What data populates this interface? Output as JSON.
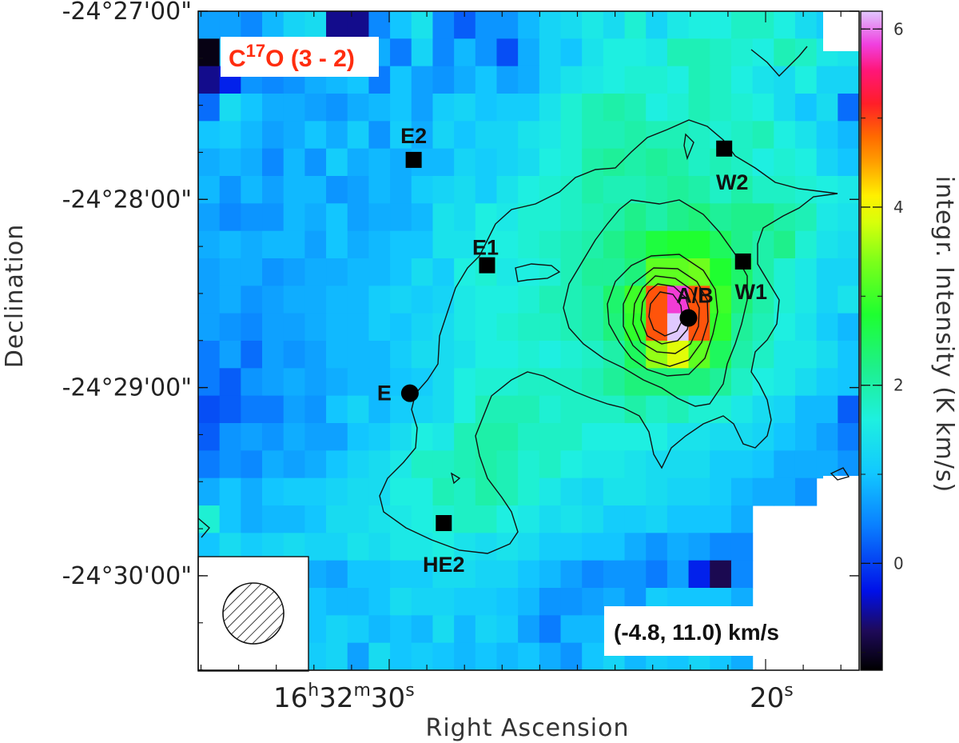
{
  "chart_data": {
    "type": "heatmap",
    "title_parts": [
      "C",
      "17",
      "O (3 - 2)"
    ],
    "velocity_range": "(-4.8, 11.0) km/s",
    "xlabel": "Right Ascension",
    "ylabel": "Declination",
    "colorbar_label": "integr. Intensity (K km/s)",
    "colorbar_range": [
      -1.2,
      6.2
    ],
    "colorbar_ticks": [
      "0",
      "2",
      "4",
      "6"
    ],
    "colorbar_tick_values": [
      0,
      2,
      4,
      6
    ],
    "y_tick_labels": [
      "-24°27'00\"",
      "-24°28'00\"",
      "-24°29'00\"",
      "-24°30'00\""
    ],
    "y_tick_values": [
      0,
      1,
      2,
      3
    ],
    "x_tick_labels": [
      {
        "main": "16",
        "sup1": "h",
        "mid": "32",
        "sup2": "m",
        "tail": "30",
        "sup3": "s"
      },
      {
        "main": "20",
        "sup1": "",
        "mid": "",
        "sup2": "",
        "tail": "",
        "sup3": "s"
      }
    ],
    "x_tick_values_sec": [
      30,
      20
    ],
    "grid": false,
    "contours": true,
    "sources": [
      {
        "name": "E2",
        "marker": "square",
        "ra_s": 29.35,
        "dec_arcmin": 0.79
      },
      {
        "name": "W2",
        "marker": "square",
        "ra_s": 21.1,
        "dec_arcmin": 0.73
      },
      {
        "name": "E1",
        "marker": "square",
        "ra_s": 27.4,
        "dec_arcmin": 1.35
      },
      {
        "name": "W1",
        "marker": "square",
        "ra_s": 20.6,
        "dec_arcmin": 1.33
      },
      {
        "name": "A/B",
        "marker": "circle",
        "ra_s": 22.05,
        "dec_arcmin": 1.63
      },
      {
        "name": "E",
        "marker": "circle",
        "ra_s": 29.45,
        "dec_arcmin": 2.03
      },
      {
        "name": "HE2",
        "marker": "square",
        "ra_s": 28.55,
        "dec_arcmin": 2.72
      }
    ],
    "beam": "hatched-circle",
    "intensity_grid": [
      [
        0.7,
        0.7,
        0.5,
        0.9,
        1.2,
        1.3,
        -0.6,
        -0.6,
        0.5,
        1.0,
        1.4,
        0.5,
        0.2,
        0.6,
        0.6,
        0.9,
        1.2,
        1.3,
        1.5,
        1.3,
        1.7,
        1.2,
        1.5,
        1.6,
        1.6,
        1.8,
        1.8,
        1.6,
        1.3,
        1.1,
        1.1
      ],
      [
        -1.1,
        0.9,
        0.4,
        0.7,
        1.2,
        0.9,
        1.0,
        0.3,
        0.8,
        0.4,
        1.2,
        0.5,
        0.9,
        0.6,
        0.1,
        0.8,
        1.2,
        1.0,
        1.4,
        1.6,
        1.6,
        1.5,
        1.9,
        1.9,
        1.8,
        1.7,
        1.6,
        1.9,
        1.8,
        1.5,
        1.4
      ],
      [
        -0.6,
        -0.2,
        0.6,
        0.5,
        0.6,
        0.8,
        0.9,
        1.0,
        0.4,
        1.0,
        0.7,
        0.6,
        0.8,
        1.0,
        0.7,
        0.8,
        1.2,
        1.4,
        1.5,
        1.6,
        1.7,
        1.7,
        1.6,
        1.9,
        1.8,
        1.6,
        1.4,
        1.3,
        1.6,
        1.2,
        1.2
      ],
      [
        0.3,
        1.3,
        1.0,
        0.8,
        0.8,
        0.7,
        0.6,
        0.8,
        0.9,
        1.0,
        0.7,
        1.1,
        1.2,
        1.0,
        1.1,
        1.1,
        1.4,
        1.7,
        1.9,
        2.0,
        1.9,
        1.6,
        1.7,
        1.9,
        1.8,
        1.7,
        1.6,
        1.3,
        1.0,
        1.3,
        0.3
      ],
      [
        1.0,
        1.1,
        0.9,
        0.7,
        0.8,
        1.0,
        0.8,
        1.1,
        0.6,
        1.1,
        0.8,
        1.2,
        1.0,
        1.2,
        1.2,
        1.4,
        1.5,
        1.7,
        1.9,
        1.9,
        2.0,
        1.9,
        1.9,
        1.8,
        1.7,
        1.8,
        1.9,
        1.6,
        1.4,
        1.1,
        0.9
      ],
      [
        0.8,
        0.9,
        0.8,
        0.5,
        0.9,
        0.6,
        1.1,
        0.8,
        0.9,
        0.8,
        0.9,
        0.9,
        1.2,
        1.1,
        1.2,
        1.3,
        1.6,
        1.7,
        2.0,
        2.1,
        2.0,
        2.1,
        2.0,
        1.8,
        1.9,
        1.8,
        1.6,
        1.7,
        1.6,
        1.2,
        1.0
      ],
      [
        0.9,
        0.6,
        0.9,
        0.7,
        0.9,
        0.9,
        0.6,
        0.7,
        0.9,
        0.8,
        1.1,
        1.2,
        1.3,
        1.1,
        1.4,
        1.6,
        1.7,
        1.8,
        2.0,
        1.9,
        1.9,
        2.0,
        2.1,
        2.0,
        1.8,
        2.0,
        1.8,
        1.8,
        1.7,
        1.6,
        1.5
      ],
      [
        0.7,
        0.5,
        0.6,
        0.6,
        0.9,
        0.8,
        1.0,
        0.7,
        0.8,
        0.8,
        0.9,
        1.4,
        1.3,
        1.6,
        1.5,
        1.7,
        1.7,
        1.8,
        1.9,
        2.0,
        2.2,
        2.0,
        2.2,
        2.3,
        2.1,
        2.2,
        2.2,
        2.0,
        1.9,
        1.5,
        1.4
      ],
      [
        0.8,
        0.9,
        0.8,
        0.9,
        0.9,
        0.7,
        1.0,
        0.8,
        0.9,
        1.0,
        1.0,
        1.4,
        1.4,
        1.6,
        1.6,
        1.7,
        1.8,
        1.9,
        2.0,
        2.2,
        2.4,
        2.7,
        2.8,
        2.8,
        2.5,
        2.2,
        2.0,
        2.2,
        1.7,
        1.4,
        1.3
      ],
      [
        0.7,
        0.8,
        0.8,
        0.6,
        0.7,
        0.8,
        0.8,
        0.9,
        0.9,
        1.0,
        1.3,
        1.1,
        1.6,
        1.7,
        1.5,
        1.6,
        1.7,
        1.9,
        2.1,
        2.1,
        2.3,
        3.2,
        3.2,
        3.3,
        2.8,
        2.4,
        2.0,
        1.7,
        1.5,
        1.2,
        1.2
      ],
      [
        0.7,
        0.8,
        0.6,
        0.7,
        0.8,
        0.8,
        0.9,
        0.9,
        1.1,
        1.2,
        1.1,
        1.2,
        1.5,
        1.6,
        1.6,
        1.7,
        1.9,
        1.9,
        2.0,
        2.4,
        3.0,
        4.9,
        5.8,
        4.9,
        3.0,
        2.3,
        2.0,
        1.7,
        1.5,
        1.2,
        1.4
      ],
      [
        0.7,
        0.6,
        0.5,
        0.7,
        0.7,
        0.8,
        0.9,
        0.9,
        1.1,
        1.0,
        1.2,
        1.3,
        1.5,
        1.6,
        1.7,
        1.8,
        1.8,
        1.9,
        2.0,
        2.3,
        2.9,
        4.9,
        6.2,
        4.9,
        2.9,
        2.1,
        1.9,
        1.6,
        1.4,
        1.1,
        0.9
      ],
      [
        0.4,
        0.7,
        0.3,
        0.7,
        0.6,
        0.7,
        0.9,
        0.9,
        0.9,
        1.1,
        1.3,
        1.3,
        1.4,
        1.6,
        1.6,
        1.7,
        1.6,
        1.7,
        1.8,
        2.0,
        2.5,
        3.5,
        3.9,
        3.2,
        2.5,
        2.0,
        1.8,
        1.5,
        1.5,
        1.3,
        1.0
      ],
      [
        0.4,
        0.2,
        0.6,
        0.7,
        0.8,
        0.7,
        0.8,
        0.9,
        0.9,
        1.0,
        1.1,
        1.3,
        1.6,
        1.7,
        1.7,
        1.8,
        1.8,
        1.8,
        1.9,
        2.1,
        2.3,
        2.3,
        2.3,
        2.3,
        2.1,
        1.8,
        1.6,
        1.5,
        1.3,
        1.1,
        1.0
      ],
      [
        0.1,
        0.2,
        0.4,
        0.4,
        0.7,
        0.6,
        1.0,
        1.2,
        0.9,
        1.1,
        1.2,
        1.3,
        1.6,
        1.9,
        1.9,
        1.9,
        1.7,
        1.8,
        1.8,
        1.8,
        2.0,
        1.8,
        1.9,
        1.7,
        1.7,
        1.5,
        1.3,
        1.2,
        0.9,
        0.9,
        0.2
      ],
      [
        0.2,
        0.6,
        0.7,
        0.6,
        0.8,
        0.7,
        0.7,
        1.0,
        1.1,
        1.3,
        1.6,
        1.5,
        1.9,
        2.0,
        2.0,
        1.8,
        1.8,
        1.8,
        1.6,
        1.6,
        1.6,
        1.6,
        1.4,
        1.4,
        1.3,
        1.3,
        1.2,
        1.0,
        0.9,
        0.7,
        0.4
      ],
      [
        0.4,
        0.6,
        0.5,
        0.8,
        0.7,
        0.8,
        1.0,
        1.2,
        1.3,
        1.5,
        1.8,
        1.8,
        1.9,
        2.0,
        1.9,
        1.7,
        1.8,
        1.6,
        1.5,
        1.5,
        1.4,
        1.3,
        1.3,
        1.3,
        1.1,
        1.1,
        1.0,
        0.8,
        0.8,
        0.8,
        0.6
      ],
      [
        0.8,
        1.0,
        0.8,
        1.0,
        1.1,
        1.1,
        1.2,
        1.3,
        1.3,
        1.6,
        1.6,
        1.9,
        1.8,
        2.0,
        1.9,
        1.7,
        1.5,
        1.3,
        1.2,
        1.4,
        1.4,
        1.3,
        1.2,
        1.2,
        1.1,
        0.9,
        0.8,
        0.8,
        0.6,
        null,
        null
      ],
      [
        1.7,
        1.0,
        0.8,
        0.9,
        0.9,
        1.0,
        1.3,
        1.3,
        1.4,
        1.5,
        1.6,
        1.7,
        1.8,
        1.8,
        1.6,
        1.5,
        1.3,
        1.4,
        1.3,
        1.1,
        1.1,
        1.2,
        1.0,
        1.0,
        1.0,
        0.8,
        null,
        null,
        null,
        null,
        null
      ],
      [
        1.0,
        1.3,
        1.1,
        1.2,
        1.3,
        1.2,
        1.2,
        1.4,
        1.3,
        1.5,
        1.5,
        1.6,
        1.4,
        1.3,
        1.4,
        1.3,
        1.1,
        1.1,
        1.0,
        1.0,
        0.8,
        0.6,
        0.8,
        0.7,
        0.5,
        0.5,
        null,
        null,
        null,
        null,
        null
      ],
      [
        0.7,
        0.5,
        0.6,
        0.6,
        0.8,
        0.8,
        0.7,
        1.0,
        1.0,
        1.1,
        1.1,
        1.3,
        1.3,
        1.2,
        1.2,
        1.0,
        0.9,
        0.7,
        0.5,
        0.6,
        0.6,
        0.4,
        0.7,
        -0.2,
        -0.8,
        0.5,
        null,
        null,
        null,
        null,
        null
      ],
      [
        0.8,
        1.2,
        1.2,
        1.0,
        0.6,
        1.0,
        0.9,
        0.9,
        1.0,
        1.3,
        1.2,
        1.2,
        1.1,
        1.1,
        1.0,
        0.9,
        0.6,
        0.6,
        0.7,
        0.8,
        0.6,
        1.1,
        1.0,
        1.0,
        1.0,
        0.8,
        null,
        null,
        null,
        null,
        null
      ],
      [
        1.3,
        1.0,
        1.3,
        1.1,
        1.3,
        1.0,
        1.2,
        1.1,
        0.9,
        1.0,
        0.9,
        1.3,
        0.9,
        1.2,
        1.1,
        0.7,
        0.4,
        0.9,
        0.9,
        1.0,
        1.2,
        1.4,
        1.0,
        1.2,
        0.9,
        0.7,
        null,
        null,
        null,
        null,
        null
      ],
      [
        1.0,
        1.4,
        1.2,
        1.0,
        1.2,
        1.1,
        1.2,
        0.7,
        1.3,
        1.0,
        1.1,
        1.0,
        0.9,
        1.0,
        0.9,
        1.0,
        0.8,
        0.6,
        1.0,
        1.2,
        0.9,
        1.1,
        1.0,
        1.2,
        1.0,
        0.8,
        null,
        null,
        null,
        null,
        null
      ]
    ]
  }
}
